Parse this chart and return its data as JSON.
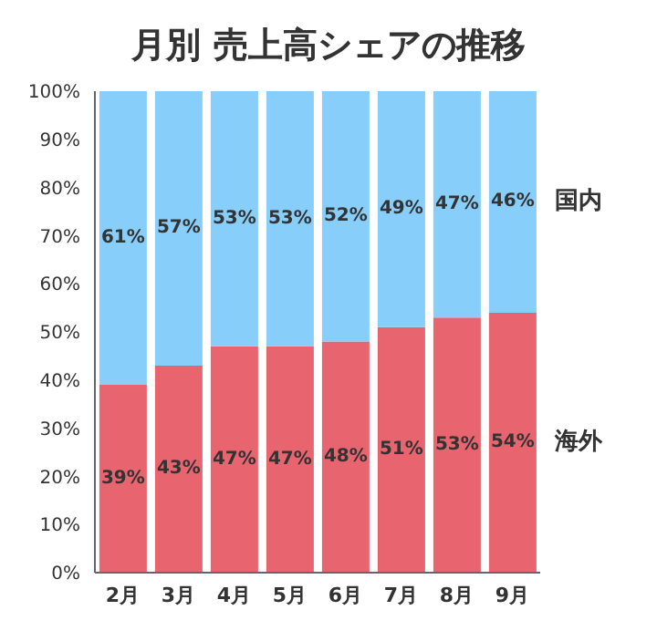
{
  "chart_data": {
    "type": "bar",
    "title": "月別 売上高シェアの推移",
    "stacked": true,
    "legend": false,
    "grid": false,
    "categories": [
      "2月",
      "3月",
      "4月",
      "5月",
      "6月",
      "7月",
      "8月",
      "9月"
    ],
    "series": [
      {
        "name": "海外",
        "color": "#e8646e",
        "values": [
          39,
          43,
          47,
          47,
          48,
          51,
          53,
          54
        ],
        "value_labels": [
          "39%",
          "43%",
          "47%",
          "47%",
          "48%",
          "51%",
          "53%",
          "54%"
        ]
      },
      {
        "name": "国内",
        "color": "#87cefa",
        "values": [
          61,
          57,
          53,
          53,
          52,
          49,
          47,
          46
        ],
        "value_labels": [
          "61%",
          "57%",
          "53%",
          "53%",
          "52%",
          "49%",
          "47%",
          "46%"
        ]
      }
    ],
    "ylim": [
      0,
      100
    ],
    "yticks": [
      {
        "value": 0,
        "label": "0%"
      },
      {
        "value": 10,
        "label": "10%"
      },
      {
        "value": 20,
        "label": "20%"
      },
      {
        "value": 30,
        "label": "30%"
      },
      {
        "value": 40,
        "label": "40%"
      },
      {
        "value": 50,
        "label": "50%"
      },
      {
        "value": 60,
        "label": "60%"
      },
      {
        "value": 70,
        "label": "70%"
      },
      {
        "value": 80,
        "label": "80%"
      },
      {
        "value": 90,
        "label": "90%"
      },
      {
        "value": 100,
        "label": "100%"
      }
    ]
  }
}
